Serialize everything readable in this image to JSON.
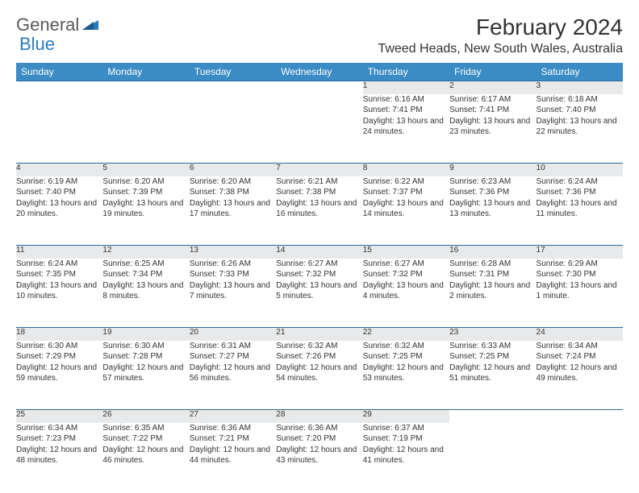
{
  "logo": {
    "part1": "General",
    "part2": "Blue"
  },
  "title": "February 2024",
  "location": "Tweed Heads, New South Wales, Australia",
  "colors": {
    "header_bg": "#3b8bc4",
    "header_text": "#ffffff",
    "daynum_bg": "#e8e9ea",
    "row_divider": "#2a6a9c",
    "logo_general": "#5a5a5a",
    "logo_blue": "#2a7ab8",
    "text": "#333333"
  },
  "day_headers": [
    "Sunday",
    "Monday",
    "Tuesday",
    "Wednesday",
    "Thursday",
    "Friday",
    "Saturday"
  ],
  "weeks": [
    {
      "numbers": [
        "",
        "",
        "",
        "",
        "1",
        "2",
        "3"
      ],
      "cells": [
        null,
        null,
        null,
        null,
        {
          "sunrise": "Sunrise: 6:16 AM",
          "sunset": "Sunset: 7:41 PM",
          "daylight": "Daylight: 13 hours and 24 minutes."
        },
        {
          "sunrise": "Sunrise: 6:17 AM",
          "sunset": "Sunset: 7:41 PM",
          "daylight": "Daylight: 13 hours and 23 minutes."
        },
        {
          "sunrise": "Sunrise: 6:18 AM",
          "sunset": "Sunset: 7:40 PM",
          "daylight": "Daylight: 13 hours and 22 minutes."
        }
      ]
    },
    {
      "numbers": [
        "4",
        "5",
        "6",
        "7",
        "8",
        "9",
        "10"
      ],
      "cells": [
        {
          "sunrise": "Sunrise: 6:19 AM",
          "sunset": "Sunset: 7:40 PM",
          "daylight": "Daylight: 13 hours and 20 minutes."
        },
        {
          "sunrise": "Sunrise: 6:20 AM",
          "sunset": "Sunset: 7:39 PM",
          "daylight": "Daylight: 13 hours and 19 minutes."
        },
        {
          "sunrise": "Sunrise: 6:20 AM",
          "sunset": "Sunset: 7:38 PM",
          "daylight": "Daylight: 13 hours and 17 minutes."
        },
        {
          "sunrise": "Sunrise: 6:21 AM",
          "sunset": "Sunset: 7:38 PM",
          "daylight": "Daylight: 13 hours and 16 minutes."
        },
        {
          "sunrise": "Sunrise: 6:22 AM",
          "sunset": "Sunset: 7:37 PM",
          "daylight": "Daylight: 13 hours and 14 minutes."
        },
        {
          "sunrise": "Sunrise: 6:23 AM",
          "sunset": "Sunset: 7:36 PM",
          "daylight": "Daylight: 13 hours and 13 minutes."
        },
        {
          "sunrise": "Sunrise: 6:24 AM",
          "sunset": "Sunset: 7:36 PM",
          "daylight": "Daylight: 13 hours and 11 minutes."
        }
      ]
    },
    {
      "numbers": [
        "11",
        "12",
        "13",
        "14",
        "15",
        "16",
        "17"
      ],
      "cells": [
        {
          "sunrise": "Sunrise: 6:24 AM",
          "sunset": "Sunset: 7:35 PM",
          "daylight": "Daylight: 13 hours and 10 minutes."
        },
        {
          "sunrise": "Sunrise: 6:25 AM",
          "sunset": "Sunset: 7:34 PM",
          "daylight": "Daylight: 13 hours and 8 minutes."
        },
        {
          "sunrise": "Sunrise: 6:26 AM",
          "sunset": "Sunset: 7:33 PM",
          "daylight": "Daylight: 13 hours and 7 minutes."
        },
        {
          "sunrise": "Sunrise: 6:27 AM",
          "sunset": "Sunset: 7:32 PM",
          "daylight": "Daylight: 13 hours and 5 minutes."
        },
        {
          "sunrise": "Sunrise: 6:27 AM",
          "sunset": "Sunset: 7:32 PM",
          "daylight": "Daylight: 13 hours and 4 minutes."
        },
        {
          "sunrise": "Sunrise: 6:28 AM",
          "sunset": "Sunset: 7:31 PM",
          "daylight": "Daylight: 13 hours and 2 minutes."
        },
        {
          "sunrise": "Sunrise: 6:29 AM",
          "sunset": "Sunset: 7:30 PM",
          "daylight": "Daylight: 13 hours and 1 minute."
        }
      ]
    },
    {
      "numbers": [
        "18",
        "19",
        "20",
        "21",
        "22",
        "23",
        "24"
      ],
      "cells": [
        {
          "sunrise": "Sunrise: 6:30 AM",
          "sunset": "Sunset: 7:29 PM",
          "daylight": "Daylight: 12 hours and 59 minutes."
        },
        {
          "sunrise": "Sunrise: 6:30 AM",
          "sunset": "Sunset: 7:28 PM",
          "daylight": "Daylight: 12 hours and 57 minutes."
        },
        {
          "sunrise": "Sunrise: 6:31 AM",
          "sunset": "Sunset: 7:27 PM",
          "daylight": "Daylight: 12 hours and 56 minutes."
        },
        {
          "sunrise": "Sunrise: 6:32 AM",
          "sunset": "Sunset: 7:26 PM",
          "daylight": "Daylight: 12 hours and 54 minutes."
        },
        {
          "sunrise": "Sunrise: 6:32 AM",
          "sunset": "Sunset: 7:25 PM",
          "daylight": "Daylight: 12 hours and 53 minutes."
        },
        {
          "sunrise": "Sunrise: 6:33 AM",
          "sunset": "Sunset: 7:25 PM",
          "daylight": "Daylight: 12 hours and 51 minutes."
        },
        {
          "sunrise": "Sunrise: 6:34 AM",
          "sunset": "Sunset: 7:24 PM",
          "daylight": "Daylight: 12 hours and 49 minutes."
        }
      ]
    },
    {
      "numbers": [
        "25",
        "26",
        "27",
        "28",
        "29",
        "",
        ""
      ],
      "cells": [
        {
          "sunrise": "Sunrise: 6:34 AM",
          "sunset": "Sunset: 7:23 PM",
          "daylight": "Daylight: 12 hours and 48 minutes."
        },
        {
          "sunrise": "Sunrise: 6:35 AM",
          "sunset": "Sunset: 7:22 PM",
          "daylight": "Daylight: 12 hours and 46 minutes."
        },
        {
          "sunrise": "Sunrise: 6:36 AM",
          "sunset": "Sunset: 7:21 PM",
          "daylight": "Daylight: 12 hours and 44 minutes."
        },
        {
          "sunrise": "Sunrise: 6:36 AM",
          "sunset": "Sunset: 7:20 PM",
          "daylight": "Daylight: 12 hours and 43 minutes."
        },
        {
          "sunrise": "Sunrise: 6:37 AM",
          "sunset": "Sunset: 7:19 PM",
          "daylight": "Daylight: 12 hours and 41 minutes."
        },
        null,
        null
      ]
    }
  ]
}
